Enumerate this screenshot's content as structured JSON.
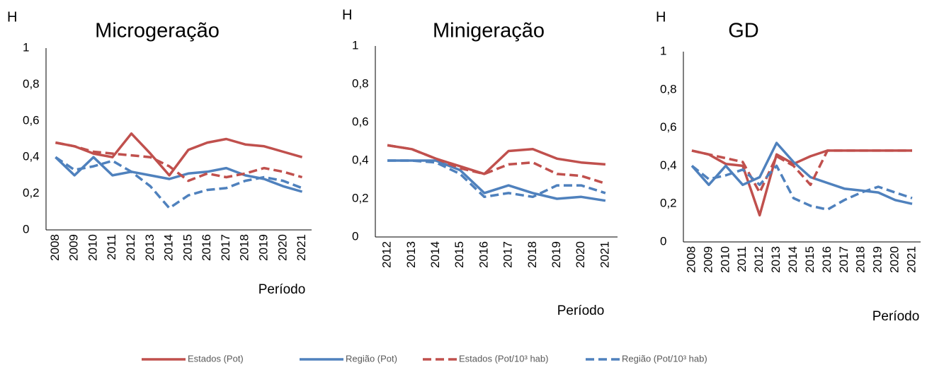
{
  "chart_data": [
    {
      "type": "line",
      "title": "Microgeração",
      "y_label": "H",
      "x_label": "Período",
      "categories": [
        "2008",
        "2009",
        "2010",
        "2011",
        "2012",
        "2013",
        "2014",
        "2015",
        "2016",
        "2017",
        "2018",
        "2019",
        "2020",
        "2021"
      ],
      "ylim": [
        0,
        1
      ],
      "yticks": [
        0,
        {
          "value": 0.2,
          "label": "0,2"
        },
        {
          "value": 0.4,
          "label": "0,4"
        },
        {
          "value": 0.6,
          "label": "0,6"
        },
        {
          "value": 0.8,
          "label": "0,8"
        },
        1
      ],
      "series": [
        {
          "name": "Estados (Pot)",
          "color": "#c0504d",
          "dashed": false,
          "values": [
            0.48,
            0.46,
            0.42,
            0.4,
            0.53,
            0.42,
            0.3,
            0.44,
            0.48,
            0.5,
            0.47,
            0.46,
            0.43,
            0.4
          ]
        },
        {
          "name": "Região (Pot)",
          "color": "#4f81bd",
          "dashed": false,
          "values": [
            0.4,
            0.3,
            0.4,
            0.3,
            0.32,
            0.3,
            0.28,
            0.31,
            0.32,
            0.34,
            0.3,
            0.28,
            0.24,
            0.21
          ]
        },
        {
          "name": "Estados (Pot/10³ hab)",
          "color": "#c0504d",
          "dashed": true,
          "values": [
            0.48,
            0.46,
            0.43,
            0.42,
            0.41,
            0.4,
            0.35,
            0.27,
            0.31,
            0.29,
            0.31,
            0.34,
            0.32,
            0.29
          ]
        },
        {
          "name": "Região (Pot/10³ hab)",
          "color": "#4f81bd",
          "dashed": true,
          "values": [
            0.4,
            0.33,
            0.35,
            0.38,
            0.32,
            0.24,
            0.12,
            0.19,
            0.22,
            0.23,
            0.27,
            0.29,
            0.27,
            0.23
          ]
        }
      ]
    },
    {
      "type": "line",
      "title": "Minigeração",
      "y_label": "H",
      "x_label": "Período",
      "categories": [
        "2012",
        "2013",
        "2014",
        "2015",
        "2016",
        "2017",
        "2018",
        "2019",
        "2020",
        "2021"
      ],
      "ylim": [
        0,
        1
      ],
      "yticks": [
        0,
        {
          "value": 0.2,
          "label": "0,2"
        },
        {
          "value": 0.4,
          "label": "0,4"
        },
        {
          "value": 0.6,
          "label": "0,6"
        },
        {
          "value": 0.8,
          "label": "0,8"
        },
        1
      ],
      "series": [
        {
          "name": "Estados (Pot)",
          "color": "#c0504d",
          "dashed": false,
          "values": [
            0.48,
            0.46,
            0.41,
            0.37,
            0.33,
            0.45,
            0.46,
            0.41,
            0.39,
            0.38
          ]
        },
        {
          "name": "Região (Pot)",
          "color": "#4f81bd",
          "dashed": false,
          "values": [
            0.4,
            0.4,
            0.4,
            0.35,
            0.23,
            0.27,
            0.23,
            0.2,
            0.21,
            0.19
          ]
        },
        {
          "name": "Estados (Pot/10³ hab)",
          "color": "#c0504d",
          "dashed": true,
          "values": [
            0.48,
            0.46,
            0.41,
            0.36,
            0.33,
            0.38,
            0.39,
            0.33,
            0.32,
            0.28
          ]
        },
        {
          "name": "Região (Pot/10³ hab)",
          "color": "#4f81bd",
          "dashed": true,
          "values": [
            0.4,
            0.4,
            0.39,
            0.33,
            0.21,
            0.23,
            0.21,
            0.27,
            0.27,
            0.23
          ]
        }
      ]
    },
    {
      "type": "line",
      "title": "GD",
      "y_label": "H",
      "x_label": "Período",
      "categories": [
        "2008",
        "2009",
        "2010",
        "2011",
        "2012",
        "2013",
        "2014",
        "2015",
        "2016",
        "2017",
        "2018",
        "2019",
        "2020",
        "2021"
      ],
      "ylim": [
        0,
        1
      ],
      "yticks": [
        0,
        {
          "value": 0.2,
          "label": "0,2"
        },
        {
          "value": 0.4,
          "label": "0,4"
        },
        {
          "value": 0.6,
          "label": "0,6"
        },
        {
          "value": 0.8,
          "label": "0,8"
        },
        1
      ],
      "series": [
        {
          "name": "Estados (Pot)",
          "color": "#c0504d",
          "dashed": false,
          "values": [
            0.48,
            0.46,
            0.41,
            0.4,
            0.14,
            0.46,
            0.41,
            0.45,
            0.48,
            0.48,
            0.48,
            0.48,
            0.48,
            0.48
          ]
        },
        {
          "name": "Região (Pot)",
          "color": "#4f81bd",
          "dashed": false,
          "values": [
            0.4,
            0.3,
            0.4,
            0.3,
            0.34,
            0.52,
            0.42,
            0.34,
            0.31,
            0.28,
            0.27,
            0.26,
            0.22,
            0.2
          ]
        },
        {
          "name": "Estados (Pot/10³ hab)",
          "color": "#c0504d",
          "dashed": true,
          "values": [
            0.48,
            0.46,
            0.44,
            0.42,
            0.26,
            0.45,
            0.4,
            0.3,
            0.48,
            0.48,
            0.48,
            0.48,
            0.48,
            0.48
          ]
        },
        {
          "name": "Região (Pot/10³ hab)",
          "color": "#4f81bd",
          "dashed": true,
          "values": [
            0.4,
            0.33,
            0.35,
            0.38,
            0.3,
            0.4,
            0.23,
            0.19,
            0.17,
            0.22,
            0.26,
            0.29,
            0.26,
            0.23
          ]
        }
      ]
    }
  ]
}
